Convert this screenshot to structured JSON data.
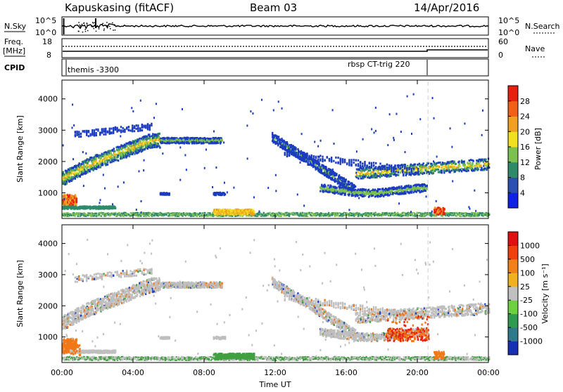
{
  "header": {
    "station": "Kapuskasing (fitACF)",
    "beam": "Beam 03",
    "date": "14/Apr/2016"
  },
  "nsky_panel": {
    "left_label": "N.Sky",
    "right_label": "N.Search",
    "left_ticks": [
      "10^5",
      "10^0"
    ],
    "right_ticks": [
      "10^5",
      "10^0"
    ]
  },
  "freq_panel": {
    "left_label_line1": "Freq.",
    "left_label_line2": "[MHz]",
    "right_label": "Nave",
    "left_ticks": [
      "18",
      "8"
    ],
    "right_ticks": [
      "60",
      "0"
    ]
  },
  "cpid_panel": {
    "label": "CPID",
    "segments": [
      {
        "start_hour": 0,
        "end_hour": 20.6,
        "text": "themis -3300"
      },
      {
        "start_hour": 20.6,
        "end_hour": 24,
        "text": "rbsp CT-trig 220"
      }
    ]
  },
  "chart_data": [
    {
      "type": "heatmap",
      "name": "power",
      "ylabel": "Slant Range [km]",
      "yticks": [
        1000,
        2000,
        3000,
        4000
      ],
      "ylim": [
        180,
        4600
      ],
      "xlim": [
        0,
        24
      ],
      "colorbar_label": "Power [dB]",
      "colorbar_ticks": [
        "4",
        "8",
        "12",
        "16",
        "20",
        "24",
        "28"
      ],
      "colorbar_colors": [
        "#1020e6",
        "#2a4fb0",
        "#2f8a6a",
        "#7cc050",
        "#f0e020",
        "#f0a020",
        "#f06018",
        "#e82010"
      ],
      "colors": {
        "blue": "#1c3cc0",
        "dark_green": "#2f8a6a",
        "green": "#7cc050",
        "yellow": "#f0e020",
        "orange": "#f0a020",
        "red": "#e82010"
      }
    },
    {
      "type": "heatmap",
      "name": "velocity",
      "ylabel": "Slant Range [km]",
      "yticks": [
        1000,
        2000,
        3000,
        4000
      ],
      "ylim": [
        180,
        4600
      ],
      "xlim": [
        0,
        24
      ],
      "xticks": [
        "00:00",
        "04:00",
        "08:00",
        "12:00",
        "16:00",
        "20:00",
        "00:00"
      ],
      "xlabel": "Time UT",
      "colorbar_label": "Velocity [m s⁻¹]",
      "colorbar_ticks": [
        "1000",
        "500",
        "100",
        "25",
        "-25",
        "-100",
        "-500",
        "-1000"
      ],
      "colorbar_colors": [
        "#1a30b4",
        "#2f7a8a",
        "#2f9a50",
        "#6cd040",
        "#c0c0c0",
        "#f0b020",
        "#f08018",
        "#f04010",
        "#e01010"
      ],
      "colors": {
        "gray": "#bfbfbf",
        "orange": "#f07818",
        "red": "#e82010",
        "green": "#40a040",
        "blue": "#2040c0"
      }
    }
  ]
}
